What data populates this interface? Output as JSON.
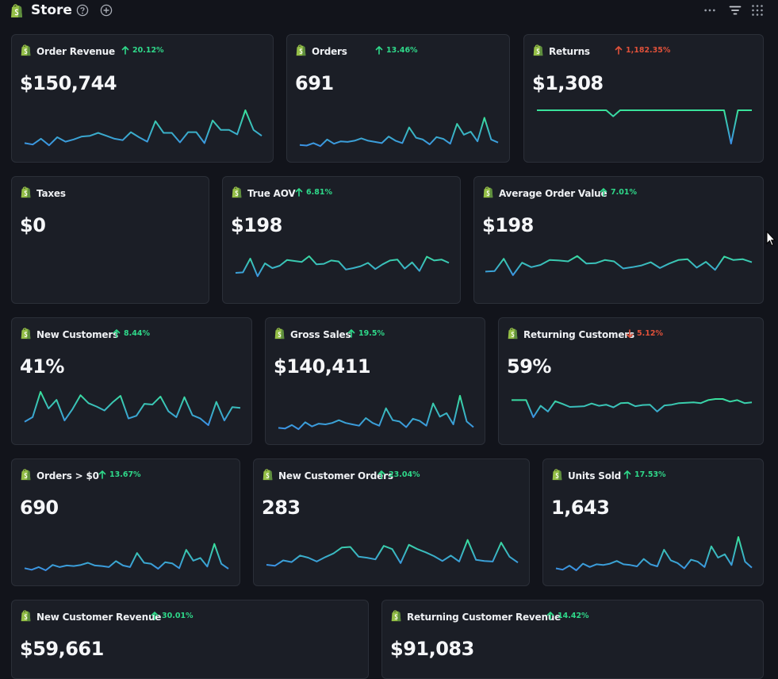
{
  "store": {
    "title": "Store"
  },
  "colors": {
    "up": "#2fd98a",
    "down": "#e0513a",
    "line_low": "#3b8fe6",
    "line_high": "#39e39a"
  },
  "cards": [
    {
      "title": "Order Revenue",
      "change": "20.12%",
      "direction": "up",
      "value": "$150,744",
      "spark": [
        0.1,
        0.06,
        0.22,
        0.04,
        0.26,
        0.14,
        0.2,
        0.28,
        0.3,
        0.38,
        0.3,
        0.22,
        0.18,
        0.4,
        0.26,
        0.14,
        0.7,
        0.38,
        0.38,
        0.12,
        0.4,
        0.4,
        0.1,
        0.72,
        0.46,
        0.46,
        0.34,
        1.0,
        0.46,
        0.3
      ]
    },
    {
      "title": "Orders",
      "change": "13.46%",
      "direction": "up",
      "value": "691",
      "spark": [
        0.06,
        0.04,
        0.12,
        0.02,
        0.24,
        0.1,
        0.18,
        0.16,
        0.2,
        0.28,
        0.2,
        0.16,
        0.12,
        0.34,
        0.2,
        0.12,
        0.64,
        0.3,
        0.24,
        0.08,
        0.32,
        0.26,
        0.1,
        0.76,
        0.4,
        0.5,
        0.18,
        0.96,
        0.24,
        0.14
      ]
    },
    {
      "title": "Returns",
      "change": "1,182.35%",
      "direction": "up_bad",
      "value": "$1,308",
      "spark": [
        1.0,
        1.0,
        1.0,
        1.0,
        1.0,
        1.0,
        1.0,
        1.0,
        1.0,
        1.0,
        1.0,
        0.82,
        1.0,
        1.0,
        1.0,
        1.0,
        1.0,
        1.0,
        1.0,
        1.0,
        1.0,
        1.0,
        1.0,
        1.0,
        1.0,
        1.0,
        1.0,
        1.0,
        0.0,
        1.0,
        1.0,
        1.0
      ]
    },
    {
      "title": "Taxes",
      "change": "",
      "direction": "none",
      "value": "$0",
      "spark": []
    },
    {
      "title": "True AOV",
      "change": "6.81%",
      "direction": "up",
      "value": "$198",
      "spark": [
        0.2,
        0.22,
        0.8,
        0.06,
        0.6,
        0.4,
        0.5,
        0.74,
        0.7,
        0.66,
        0.9,
        0.56,
        0.58,
        0.72,
        0.68,
        0.34,
        0.4,
        0.48,
        0.62,
        0.36,
        0.56,
        0.72,
        0.76,
        0.38,
        0.64,
        0.28,
        0.88,
        0.72,
        0.76,
        0.62
      ]
    },
    {
      "title": "Average Order Value",
      "change": "7.01%",
      "direction": "up",
      "value": "$198",
      "spark": [
        0.2,
        0.22,
        0.78,
        0.04,
        0.6,
        0.4,
        0.5,
        0.72,
        0.7,
        0.66,
        0.9,
        0.56,
        0.58,
        0.72,
        0.66,
        0.34,
        0.4,
        0.48,
        0.62,
        0.36,
        0.56,
        0.72,
        0.76,
        0.38,
        0.64,
        0.28,
        0.88,
        0.72,
        0.76,
        0.62
      ]
    },
    {
      "title": "New Customers",
      "change": "8.44%",
      "direction": "up",
      "value": "41%",
      "spark": [
        0.1,
        0.24,
        1.0,
        0.5,
        0.76,
        0.14,
        0.48,
        0.9,
        0.66,
        0.56,
        0.44,
        0.68,
        0.88,
        0.2,
        0.28,
        0.64,
        0.62,
        0.86,
        0.42,
        0.24,
        0.84,
        0.3,
        0.2,
        0.0,
        0.7,
        0.14,
        0.54,
        0.52
      ]
    },
    {
      "title": "Gross Sales",
      "change": "19.5%",
      "direction": "up",
      "value": "$140,411",
      "spark": [
        0.06,
        0.04,
        0.14,
        0.02,
        0.22,
        0.1,
        0.18,
        0.16,
        0.2,
        0.28,
        0.2,
        0.16,
        0.12,
        0.34,
        0.2,
        0.12,
        0.62,
        0.28,
        0.24,
        0.08,
        0.32,
        0.26,
        0.12,
        0.76,
        0.38,
        0.48,
        0.16,
        0.98,
        0.24,
        0.08
      ]
    },
    {
      "title": "Returning Customers",
      "change": "5.12%",
      "direction": "down",
      "value": "59%",
      "spark": [
        0.9,
        0.9,
        0.9,
        0.0,
        0.6,
        0.3,
        0.84,
        0.7,
        0.54,
        0.56,
        0.58,
        0.72,
        0.6,
        0.66,
        0.52,
        0.74,
        0.76,
        0.58,
        0.64,
        0.66,
        0.3,
        0.62,
        0.66,
        0.74,
        0.76,
        0.78,
        0.74,
        0.9,
        0.96,
        0.96,
        0.82,
        0.9,
        0.74,
        0.78
      ]
    },
    {
      "title": "Orders > $0",
      "change": "13.67%",
      "direction": "up",
      "value": "690",
      "spark": [
        0.08,
        0.02,
        0.12,
        0.0,
        0.2,
        0.12,
        0.18,
        0.16,
        0.2,
        0.28,
        0.18,
        0.16,
        0.12,
        0.34,
        0.18,
        0.12,
        0.64,
        0.28,
        0.24,
        0.06,
        0.3,
        0.26,
        0.08,
        0.76,
        0.36,
        0.46,
        0.14,
        0.98,
        0.24,
        0.06
      ]
    },
    {
      "title": "New Customer Orders",
      "change": "23.04%",
      "direction": "up",
      "value": "283",
      "spark": [
        0.06,
        0.02,
        0.22,
        0.16,
        0.4,
        0.32,
        0.18,
        0.34,
        0.48,
        0.7,
        0.72,
        0.36,
        0.32,
        0.26,
        0.76,
        0.64,
        0.12,
        0.8,
        0.64,
        0.52,
        0.38,
        0.2,
        0.4,
        0.18,
        0.98,
        0.24,
        0.2,
        0.18,
        0.88,
        0.36,
        0.14
      ]
    },
    {
      "title": "Units Sold",
      "change": "17.53%",
      "direction": "up",
      "value": "1,643",
      "spark": [
        0.06,
        0.02,
        0.14,
        0.0,
        0.2,
        0.1,
        0.18,
        0.16,
        0.2,
        0.28,
        0.18,
        0.16,
        0.12,
        0.34,
        0.18,
        0.12,
        0.62,
        0.3,
        0.22,
        0.06,
        0.32,
        0.26,
        0.1,
        0.72,
        0.38,
        0.48,
        0.16,
        1.0,
        0.26,
        0.08
      ]
    },
    {
      "title": "New Customer Revenue",
      "change": "30.01%",
      "direction": "up",
      "value": "$59,661",
      "spark": []
    },
    {
      "title": "Returning Customer Revenue",
      "change": "14.42%",
      "direction": "up",
      "value": "$91,083",
      "spark": []
    }
  ]
}
